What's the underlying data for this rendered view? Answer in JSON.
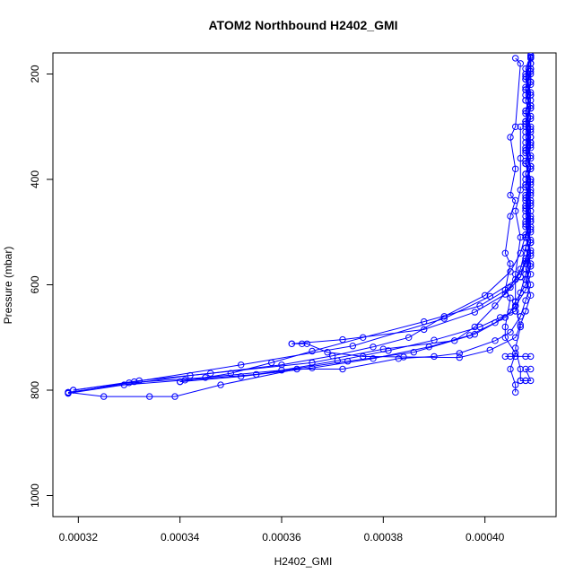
{
  "chart_data": {
    "type": "line",
    "title": "ATOM2 Northbound H2402_GMI",
    "xlabel": "H2402_GMI",
    "ylabel": "Pressure (mbar)",
    "xlim": [
      0.000315,
      0.000414
    ],
    "ylim": [
      1040,
      160
    ],
    "y_reversed": true,
    "grid": false,
    "legend": "none",
    "x_ticks": [
      0.00032,
      0.00034,
      0.00036,
      0.00038,
      0.0004
    ],
    "x_tick_labels": [
      "0.00032",
      "0.00034",
      "0.00036",
      "0.00038",
      "0.00040"
    ],
    "y_ticks": [
      200,
      400,
      600,
      800,
      1000
    ],
    "y_tick_labels": [
      "200",
      "400",
      "600",
      "800",
      "1000"
    ],
    "color": "#0000ff",
    "series": [
      {
        "points": [
          [
            0.000409,
            165
          ],
          [
            0.000408,
            190
          ],
          [
            0.000409,
            215
          ],
          [
            0.000408,
            240
          ],
          [
            0.000409,
            265
          ],
          [
            0.000408,
            290
          ],
          [
            0.000409,
            320
          ],
          [
            0.000408,
            345
          ],
          [
            0.000409,
            375
          ],
          [
            0.000408,
            400
          ],
          [
            0.000409,
            430
          ],
          [
            0.000408,
            455
          ],
          [
            0.000409,
            480
          ],
          [
            0.000408,
            510
          ],
          [
            0.000409,
            535
          ],
          [
            0.000408,
            560
          ],
          [
            0.000406,
            590
          ],
          [
            0.000402,
            640
          ],
          [
            0.000398,
            680
          ],
          [
            0.000394,
            706
          ],
          [
            0.00038,
            722
          ],
          [
            0.000366,
            748
          ],
          [
            0.000342,
            772
          ],
          [
            0.000318,
            804
          ]
        ]
      },
      {
        "points": [
          [
            0.000318,
            804
          ],
          [
            0.000325,
            812
          ],
          [
            0.000334,
            812
          ],
          [
            0.000339,
            812
          ],
          [
            0.000348,
            790
          ],
          [
            0.000363,
            760
          ],
          [
            0.000372,
            760
          ],
          [
            0.000383,
            740
          ],
          [
            0.00039,
            736
          ],
          [
            0.000395,
            730
          ],
          [
            0.000402,
            706
          ],
          [
            0.000405,
            690
          ],
          [
            0.000407,
            660
          ]
        ]
      },
      {
        "points": [
          [
            0.000407,
            660
          ],
          [
            0.000408,
            630
          ],
          [
            0.000409,
            600
          ],
          [
            0.000408,
            570
          ],
          [
            0.000409,
            540
          ],
          [
            0.000408,
            510
          ],
          [
            0.000409,
            480
          ],
          [
            0.000408,
            450
          ],
          [
            0.000409,
            420
          ],
          [
            0.000408,
            390
          ],
          [
            0.000409,
            360
          ],
          [
            0.000408,
            330
          ],
          [
            0.000409,
            300
          ],
          [
            0.000408,
            270
          ],
          [
            0.000409,
            240
          ],
          [
            0.000408,
            210
          ],
          [
            0.000409,
            180
          ],
          [
            0.000409,
            165
          ]
        ]
      },
      {
        "points": [
          [
            0.000409,
            165
          ],
          [
            0.000408,
            200
          ],
          [
            0.000409,
            235
          ],
          [
            0.000408,
            270
          ],
          [
            0.000409,
            305
          ],
          [
            0.000408,
            340
          ],
          [
            0.000409,
            375
          ],
          [
            0.000408,
            410
          ],
          [
            0.000409,
            445
          ],
          [
            0.000408,
            480
          ],
          [
            0.000409,
            515
          ],
          [
            0.000408,
            550
          ],
          [
            0.000407,
            585
          ],
          [
            0.000404,
            618
          ],
          [
            0.000398,
            652
          ],
          [
            0.000388,
            685
          ],
          [
            0.000372,
            704
          ],
          [
            0.000362,
            712
          ]
        ]
      },
      {
        "points": [
          [
            0.000362,
            712
          ],
          [
            0.000364,
            712
          ],
          [
            0.000365,
            712
          ],
          [
            0.000369,
            728
          ],
          [
            0.000376,
            736
          ],
          [
            0.000384,
            737
          ],
          [
            0.000395,
            738
          ],
          [
            0.000401,
            724
          ],
          [
            0.000406,
            700
          ],
          [
            0.000407,
            676
          ],
          [
            0.000408,
            650
          ]
        ]
      },
      {
        "points": [
          [
            0.000408,
            650
          ],
          [
            0.000409,
            620
          ],
          [
            0.000408,
            590
          ],
          [
            0.000409,
            560
          ],
          [
            0.000408,
            530
          ],
          [
            0.000409,
            500
          ],
          [
            0.000408,
            470
          ],
          [
            0.000409,
            440
          ],
          [
            0.000408,
            410
          ],
          [
            0.000409,
            380
          ],
          [
            0.000408,
            350
          ],
          [
            0.000409,
            320
          ],
          [
            0.000408,
            290
          ],
          [
            0.000409,
            260
          ],
          [
            0.000408,
            230
          ],
          [
            0.000409,
            200
          ],
          [
            0.000409,
            170
          ]
        ]
      },
      {
        "points": [
          [
            0.000409,
            170
          ],
          [
            0.000408,
            205
          ],
          [
            0.000409,
            240
          ],
          [
            0.000408,
            275
          ],
          [
            0.000409,
            310
          ],
          [
            0.000408,
            345
          ],
          [
            0.000409,
            380
          ],
          [
            0.000408,
            415
          ],
          [
            0.000409,
            450
          ],
          [
            0.000408,
            485
          ],
          [
            0.000409,
            520
          ],
          [
            0.000408,
            555
          ],
          [
            0.000407,
            585
          ],
          [
            0.000401,
            622
          ],
          [
            0.000392,
            664
          ],
          [
            0.000374,
            716
          ],
          [
            0.000352,
            752
          ],
          [
            0.000331,
            784
          ],
          [
            0.000318,
            806
          ]
        ]
      },
      {
        "points": [
          [
            0.000318,
            806
          ],
          [
            0.000329,
            790
          ],
          [
            0.000341,
            781
          ],
          [
            0.000355,
            770
          ],
          [
            0.000373,
            745
          ],
          [
            0.000386,
            728
          ],
          [
            0.000398,
            694
          ],
          [
            0.000404,
            662
          ],
          [
            0.000406,
            640
          ]
        ]
      },
      {
        "points": [
          [
            0.000406,
            640
          ],
          [
            0.000408,
            610
          ],
          [
            0.000409,
            580
          ],
          [
            0.000408,
            550
          ],
          [
            0.000409,
            520
          ],
          [
            0.000408,
            490
          ],
          [
            0.000409,
            460
          ],
          [
            0.000408,
            430
          ],
          [
            0.000409,
            400
          ],
          [
            0.000408,
            370
          ],
          [
            0.000409,
            340
          ],
          [
            0.000408,
            310
          ],
          [
            0.000409,
            280
          ],
          [
            0.000408,
            250
          ],
          [
            0.000409,
            220
          ],
          [
            0.000409,
            190
          ]
        ]
      },
      {
        "points": [
          [
            0.000409,
            190
          ],
          [
            0.000408,
            225
          ],
          [
            0.000409,
            260
          ],
          [
            0.000408,
            295
          ],
          [
            0.000409,
            330
          ],
          [
            0.000408,
            365
          ],
          [
            0.000409,
            400
          ],
          [
            0.000408,
            435
          ],
          [
            0.000409,
            470
          ],
          [
            0.000408,
            505
          ],
          [
            0.000407,
            540
          ],
          [
            0.000405,
            575
          ],
          [
            0.0004,
            620
          ],
          [
            0.000392,
            660
          ],
          [
            0.000385,
            700
          ],
          [
            0.000378,
            718
          ],
          [
            0.00037,
            735
          ],
          [
            0.00036,
            752
          ],
          [
            0.000346,
            768
          ],
          [
            0.000332,
            782
          ],
          [
            0.000319,
            800
          ]
        ]
      },
      {
        "points": [
          [
            0.000319,
            800
          ],
          [
            0.00033,
            786
          ],
          [
            0.000345,
            776
          ],
          [
            0.00036,
            762
          ],
          [
            0.000371,
            744
          ],
          [
            0.000381,
            725
          ],
          [
            0.00039,
            705
          ],
          [
            0.000399,
            680
          ],
          [
            0.000403,
            662
          ],
          [
            0.000406,
            650
          ]
        ]
      },
      {
        "points": [
          [
            0.000406,
            650
          ],
          [
            0.000407,
            615
          ],
          [
            0.000408,
            580
          ],
          [
            0.000409,
            545
          ],
          [
            0.000408,
            510
          ],
          [
            0.000409,
            475
          ],
          [
            0.000408,
            440
          ],
          [
            0.000409,
            405
          ],
          [
            0.000408,
            370
          ],
          [
            0.000409,
            335
          ],
          [
            0.000408,
            300
          ],
          [
            0.000409,
            265
          ],
          [
            0.000408,
            230
          ],
          [
            0.000409,
            195
          ],
          [
            0.000409,
            168
          ]
        ]
      },
      {
        "points": [
          [
            0.000409,
            168
          ],
          [
            0.000408,
            210
          ],
          [
            0.000409,
            250
          ],
          [
            0.000408,
            290
          ],
          [
            0.000409,
            330
          ],
          [
            0.000408,
            370
          ],
          [
            0.000409,
            410
          ],
          [
            0.000408,
            450
          ],
          [
            0.000409,
            490
          ],
          [
            0.000408,
            530
          ],
          [
            0.000407,
            570
          ],
          [
            0.000405,
            605
          ],
          [
            0.000399,
            640
          ],
          [
            0.000388,
            670
          ],
          [
            0.000376,
            700
          ],
          [
            0.000366,
            726
          ],
          [
            0.000358,
            748
          ],
          [
            0.00035,
            768
          ],
          [
            0.00034,
            784
          ]
        ]
      },
      {
        "points": [
          [
            0.00034,
            784
          ],
          [
            0.000352,
            774
          ],
          [
            0.000366,
            758
          ],
          [
            0.000378,
            740
          ],
          [
            0.000389,
            718
          ],
          [
            0.000397,
            696
          ],
          [
            0.000402,
            672
          ],
          [
            0.000405,
            652
          ],
          [
            0.000406,
            632
          ]
        ]
      },
      {
        "points": [
          [
            0.000406,
            632
          ],
          [
            0.000408,
            600
          ],
          [
            0.000409,
            565
          ],
          [
            0.000408,
            530
          ],
          [
            0.000409,
            495
          ],
          [
            0.000408,
            460
          ],
          [
            0.000409,
            425
          ],
          [
            0.000408,
            390
          ],
          [
            0.000409,
            355
          ],
          [
            0.000408,
            320
          ],
          [
            0.000409,
            285
          ],
          [
            0.000408,
            250
          ],
          [
            0.000409,
            215
          ],
          [
            0.000409,
            180
          ]
        ]
      },
      {
        "points": [
          [
            0.000406,
            170
          ],
          [
            0.000407,
            180
          ],
          [
            0.000406,
            300
          ],
          [
            0.000405,
            320
          ],
          [
            0.000406,
            380
          ],
          [
            0.000405,
            430
          ],
          [
            0.000406,
            440
          ],
          [
            0.000405,
            470
          ],
          [
            0.000404,
            540
          ],
          [
            0.000405,
            560
          ],
          [
            0.000404,
            610
          ],
          [
            0.000405,
            625
          ],
          [
            0.000404,
            680
          ],
          [
            0.000404,
            700
          ],
          [
            0.000406,
            730
          ],
          [
            0.000405,
            760
          ],
          [
            0.000406,
            790
          ],
          [
            0.000406,
            804
          ]
        ]
      },
      {
        "points": [
          [
            0.000407,
            300
          ],
          [
            0.000407,
            360
          ],
          [
            0.000407,
            420
          ],
          [
            0.000406,
            460
          ],
          [
            0.000407,
            510
          ],
          [
            0.000406,
            580
          ],
          [
            0.000406,
            640
          ],
          [
            0.000407,
            680
          ],
          [
            0.000406,
            720
          ],
          [
            0.000407,
            760
          ],
          [
            0.000407,
            782
          ],
          [
            0.000408,
            782
          ]
        ]
      },
      {
        "points": [
          [
            0.000404,
            736
          ],
          [
            0.000405,
            736
          ],
          [
            0.000406,
            736
          ],
          [
            0.000408,
            736
          ],
          [
            0.000409,
            736
          ]
        ]
      },
      {
        "points": [
          [
            0.000407,
            782
          ],
          [
            0.000408,
            782
          ],
          [
            0.000409,
            782
          ],
          [
            0.000408,
            760
          ],
          [
            0.000409,
            760
          ]
        ]
      }
    ]
  }
}
